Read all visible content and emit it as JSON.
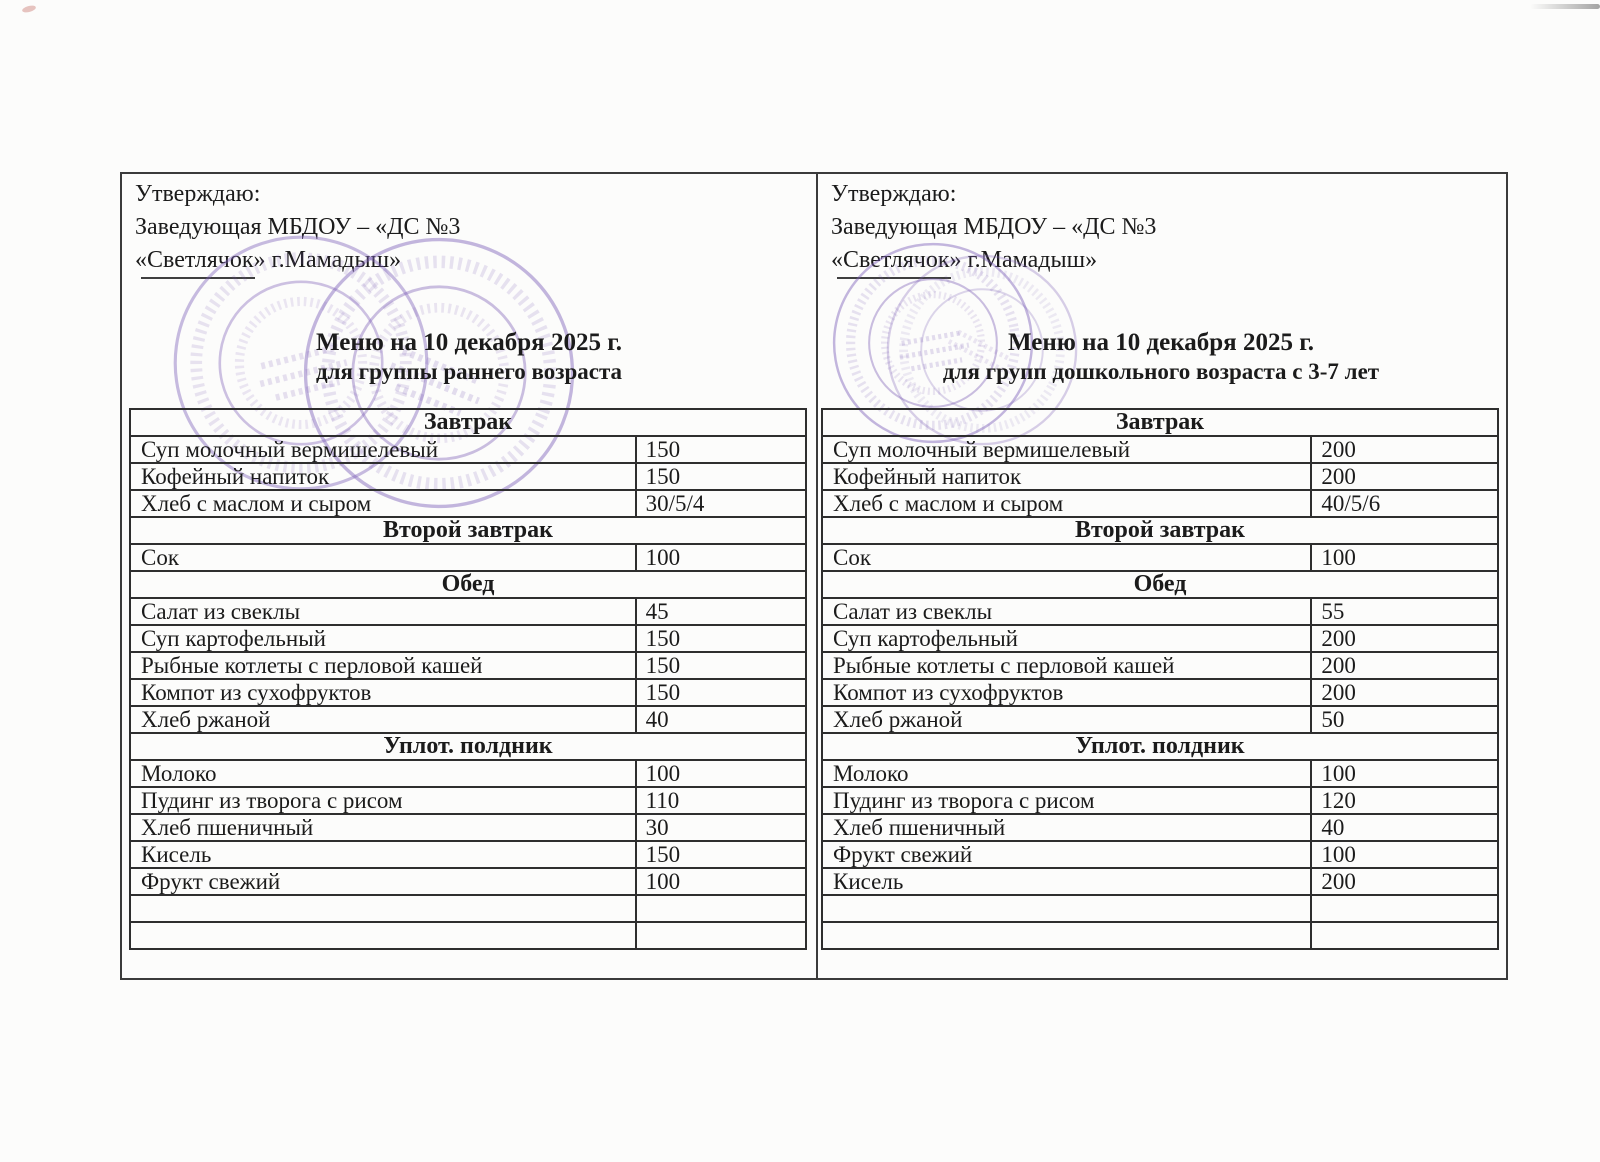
{
  "document": {
    "approval": {
      "line1": "Утверждаю:",
      "line2": "Заведующая МБДОУ – «ДС №3",
      "line3": "«Светлячок» г.Мамадыш»"
    },
    "colors": {
      "stamp": "#7d5fb7",
      "ink": "#1b1b1b",
      "table_border": "#2e2e2e"
    }
  },
  "left_menu": {
    "title": "Меню на 10 декабря 2025 г.",
    "subtitle": "для группы раннего возраста",
    "sections": [
      {
        "header": "Завтрак",
        "items": [
          {
            "dish": "Суп молочный вермишелевый",
            "portion": "150"
          },
          {
            "dish": "Кофейный напиток",
            "portion": "150"
          },
          {
            "dish": "Хлеб с маслом и сыром",
            "portion": "30/5/4"
          }
        ]
      },
      {
        "header": "Второй завтрак",
        "items": [
          {
            "dish": "Сок",
            "portion": "100"
          }
        ]
      },
      {
        "header": "Обед",
        "items": [
          {
            "dish": "Салат из свеклы",
            "portion": "45"
          },
          {
            "dish": "Суп картофельный",
            "portion": "150"
          },
          {
            "dish": "Рыбные котлеты с перловой кашей",
            "portion": "150"
          },
          {
            "dish": "Компот из сухофруктов",
            "portion": "150"
          },
          {
            "dish": "Хлеб ржаной",
            "portion": "40"
          }
        ]
      },
      {
        "header": "Уплот. полдник",
        "items": [
          {
            "dish": "Молоко",
            "portion": "100"
          },
          {
            "dish": "Пудинг из творога с рисом",
            "portion": "110"
          },
          {
            "dish": "Хлеб пшеничный",
            "portion": "30"
          },
          {
            "dish": "Кисель",
            "portion": "150"
          },
          {
            "dish": "Фрукт свежий",
            "portion": "100"
          },
          {
            "dish": "",
            "portion": ""
          },
          {
            "dish": "",
            "portion": ""
          }
        ]
      }
    ]
  },
  "right_menu": {
    "title": "Меню на 10 декабря 2025 г.",
    "subtitle": "для групп дошкольного возраста с 3-7 лет",
    "sections": [
      {
        "header": "Завтрак",
        "items": [
          {
            "dish": "Суп молочный вермишелевый",
            "portion": "200"
          },
          {
            "dish": "Кофейный напиток",
            "portion": "200"
          },
          {
            "dish": "Хлеб с маслом и сыром",
            "portion": "40/5/6"
          }
        ]
      },
      {
        "header": "Второй завтрак",
        "items": [
          {
            "dish": "Сок",
            "portion": "100"
          }
        ]
      },
      {
        "header": "Обед",
        "items": [
          {
            "dish": "Салат из свеклы",
            "portion": "55"
          },
          {
            "dish": "Суп картофельный",
            "portion": "200"
          },
          {
            "dish": "Рыбные котлеты с перловой кашей",
            "portion": "200"
          },
          {
            "dish": "Компот из сухофруктов",
            "portion": "200"
          },
          {
            "dish": "Хлеб ржаной",
            "portion": "50"
          }
        ]
      },
      {
        "header": "Уплот. полдник",
        "items": [
          {
            "dish": "Молоко",
            "portion": "100"
          },
          {
            "dish": "Пудинг из творога с рисом",
            "portion": "120"
          },
          {
            "dish": "Хлеб пшеничный",
            "portion": "40"
          },
          {
            "dish": "Фрукт свежий",
            "portion": "100"
          },
          {
            "dish": "Кисель",
            "portion": "200"
          },
          {
            "dish": "",
            "portion": ""
          },
          {
            "dish": "",
            "portion": ""
          }
        ]
      }
    ]
  }
}
